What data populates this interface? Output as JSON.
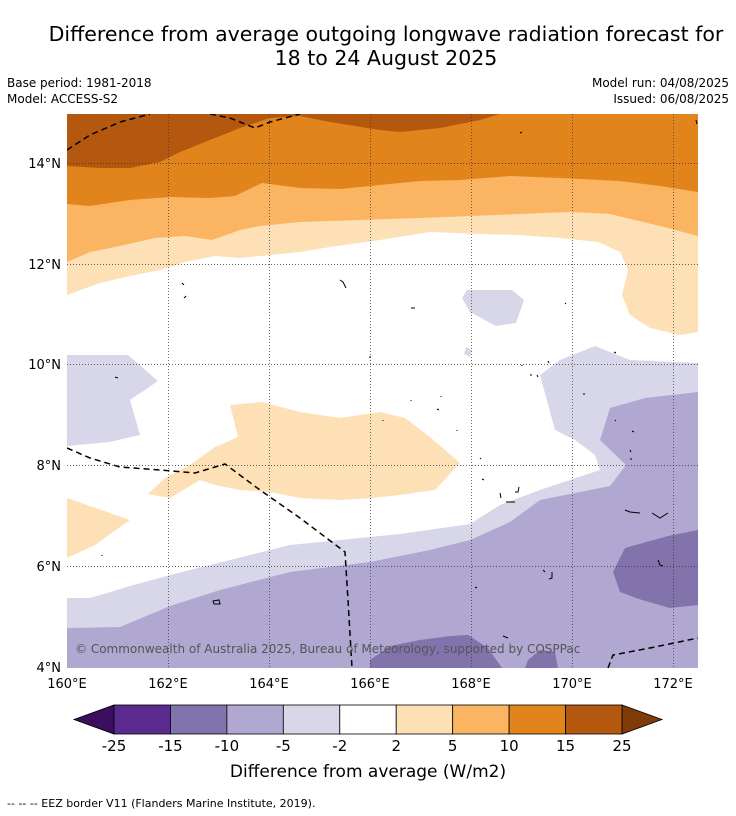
{
  "title_line1": "Difference from average outgoing longwave radiation forecast for",
  "title_line2": "18 to 24 August 2025",
  "base_period": "Base period: 1981-2018",
  "model": "Model: ACCESS-S2",
  "model_run": "Model run: 04/08/2025",
  "issued": "Issued: 06/08/2025",
  "credit": "© Commonwealth of Australia 2025, Bureau of Meteorology, supported by COSPPac",
  "lon_labels": [
    "160°E",
    "162°E",
    "164°E",
    "166°E",
    "168°E",
    "170°E",
    "172°E"
  ],
  "lat_labels": [
    "4°N",
    "6°N",
    "8°N",
    "10°N",
    "12°N",
    "14°N"
  ],
  "colorbar": {
    "ticks": [
      "-25",
      "-15",
      "-10",
      "-5",
      "-2",
      "2",
      "5",
      "10",
      "15",
      "25"
    ],
    "colors": [
      "#5b2a8f",
      "#8373ad",
      "#b0a8d1",
      "#d8d7ea",
      "#ffffff",
      "#fde0b6",
      "#fbb562",
      "#e1841b",
      "#b3580e"
    ],
    "under_color": "#3b0f5e",
    "over_color": "#7f3b08",
    "title": "Difference from average (W/m2)"
  },
  "footnote": "--  --  -- EEZ border V11 (Flanders Marine Institute, 2019)."
}
